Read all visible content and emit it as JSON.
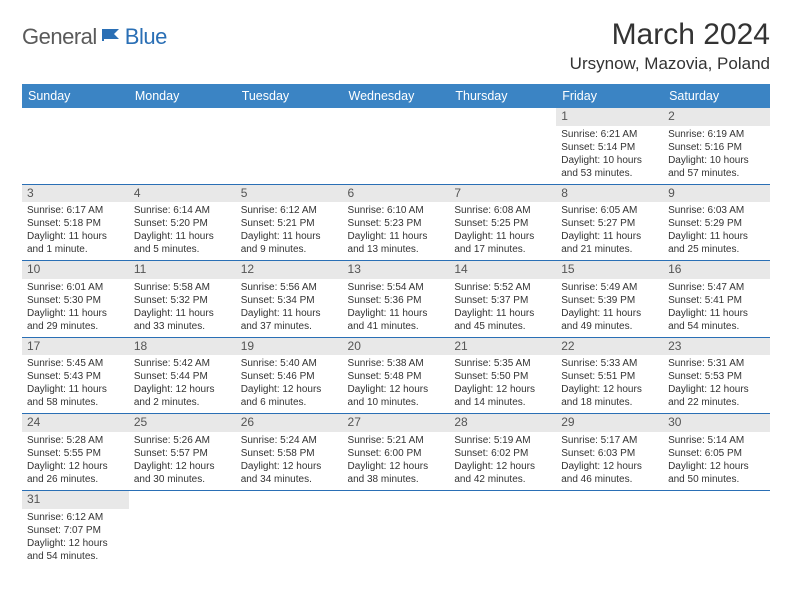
{
  "logo": {
    "text1": "General",
    "text2": "Blue"
  },
  "title": "March 2024",
  "location": "Ursynow, Mazovia, Poland",
  "colors": {
    "header_bg": "#3b84c4",
    "header_text": "#ffffff",
    "rule": "#2a6fb5",
    "daynum_bg": "#e8e8e8",
    "logo_gray": "#5a5a5a",
    "logo_blue": "#2a6fb5"
  },
  "weekdays": [
    "Sunday",
    "Monday",
    "Tuesday",
    "Wednesday",
    "Thursday",
    "Friday",
    "Saturday"
  ],
  "weeks": [
    [
      null,
      null,
      null,
      null,
      null,
      {
        "n": "1",
        "sr": "Sunrise: 6:21 AM",
        "ss": "Sunset: 5:14 PM",
        "dl": "Daylight: 10 hours and 53 minutes."
      },
      {
        "n": "2",
        "sr": "Sunrise: 6:19 AM",
        "ss": "Sunset: 5:16 PM",
        "dl": "Daylight: 10 hours and 57 minutes."
      }
    ],
    [
      {
        "n": "3",
        "sr": "Sunrise: 6:17 AM",
        "ss": "Sunset: 5:18 PM",
        "dl": "Daylight: 11 hours and 1 minute."
      },
      {
        "n": "4",
        "sr": "Sunrise: 6:14 AM",
        "ss": "Sunset: 5:20 PM",
        "dl": "Daylight: 11 hours and 5 minutes."
      },
      {
        "n": "5",
        "sr": "Sunrise: 6:12 AM",
        "ss": "Sunset: 5:21 PM",
        "dl": "Daylight: 11 hours and 9 minutes."
      },
      {
        "n": "6",
        "sr": "Sunrise: 6:10 AM",
        "ss": "Sunset: 5:23 PM",
        "dl": "Daylight: 11 hours and 13 minutes."
      },
      {
        "n": "7",
        "sr": "Sunrise: 6:08 AM",
        "ss": "Sunset: 5:25 PM",
        "dl": "Daylight: 11 hours and 17 minutes."
      },
      {
        "n": "8",
        "sr": "Sunrise: 6:05 AM",
        "ss": "Sunset: 5:27 PM",
        "dl": "Daylight: 11 hours and 21 minutes."
      },
      {
        "n": "9",
        "sr": "Sunrise: 6:03 AM",
        "ss": "Sunset: 5:29 PM",
        "dl": "Daylight: 11 hours and 25 minutes."
      }
    ],
    [
      {
        "n": "10",
        "sr": "Sunrise: 6:01 AM",
        "ss": "Sunset: 5:30 PM",
        "dl": "Daylight: 11 hours and 29 minutes."
      },
      {
        "n": "11",
        "sr": "Sunrise: 5:58 AM",
        "ss": "Sunset: 5:32 PM",
        "dl": "Daylight: 11 hours and 33 minutes."
      },
      {
        "n": "12",
        "sr": "Sunrise: 5:56 AM",
        "ss": "Sunset: 5:34 PM",
        "dl": "Daylight: 11 hours and 37 minutes."
      },
      {
        "n": "13",
        "sr": "Sunrise: 5:54 AM",
        "ss": "Sunset: 5:36 PM",
        "dl": "Daylight: 11 hours and 41 minutes."
      },
      {
        "n": "14",
        "sr": "Sunrise: 5:52 AM",
        "ss": "Sunset: 5:37 PM",
        "dl": "Daylight: 11 hours and 45 minutes."
      },
      {
        "n": "15",
        "sr": "Sunrise: 5:49 AM",
        "ss": "Sunset: 5:39 PM",
        "dl": "Daylight: 11 hours and 49 minutes."
      },
      {
        "n": "16",
        "sr": "Sunrise: 5:47 AM",
        "ss": "Sunset: 5:41 PM",
        "dl": "Daylight: 11 hours and 54 minutes."
      }
    ],
    [
      {
        "n": "17",
        "sr": "Sunrise: 5:45 AM",
        "ss": "Sunset: 5:43 PM",
        "dl": "Daylight: 11 hours and 58 minutes."
      },
      {
        "n": "18",
        "sr": "Sunrise: 5:42 AM",
        "ss": "Sunset: 5:44 PM",
        "dl": "Daylight: 12 hours and 2 minutes."
      },
      {
        "n": "19",
        "sr": "Sunrise: 5:40 AM",
        "ss": "Sunset: 5:46 PM",
        "dl": "Daylight: 12 hours and 6 minutes."
      },
      {
        "n": "20",
        "sr": "Sunrise: 5:38 AM",
        "ss": "Sunset: 5:48 PM",
        "dl": "Daylight: 12 hours and 10 minutes."
      },
      {
        "n": "21",
        "sr": "Sunrise: 5:35 AM",
        "ss": "Sunset: 5:50 PM",
        "dl": "Daylight: 12 hours and 14 minutes."
      },
      {
        "n": "22",
        "sr": "Sunrise: 5:33 AM",
        "ss": "Sunset: 5:51 PM",
        "dl": "Daylight: 12 hours and 18 minutes."
      },
      {
        "n": "23",
        "sr": "Sunrise: 5:31 AM",
        "ss": "Sunset: 5:53 PM",
        "dl": "Daylight: 12 hours and 22 minutes."
      }
    ],
    [
      {
        "n": "24",
        "sr": "Sunrise: 5:28 AM",
        "ss": "Sunset: 5:55 PM",
        "dl": "Daylight: 12 hours and 26 minutes."
      },
      {
        "n": "25",
        "sr": "Sunrise: 5:26 AM",
        "ss": "Sunset: 5:57 PM",
        "dl": "Daylight: 12 hours and 30 minutes."
      },
      {
        "n": "26",
        "sr": "Sunrise: 5:24 AM",
        "ss": "Sunset: 5:58 PM",
        "dl": "Daylight: 12 hours and 34 minutes."
      },
      {
        "n": "27",
        "sr": "Sunrise: 5:21 AM",
        "ss": "Sunset: 6:00 PM",
        "dl": "Daylight: 12 hours and 38 minutes."
      },
      {
        "n": "28",
        "sr": "Sunrise: 5:19 AM",
        "ss": "Sunset: 6:02 PM",
        "dl": "Daylight: 12 hours and 42 minutes."
      },
      {
        "n": "29",
        "sr": "Sunrise: 5:17 AM",
        "ss": "Sunset: 6:03 PM",
        "dl": "Daylight: 12 hours and 46 minutes."
      },
      {
        "n": "30",
        "sr": "Sunrise: 5:14 AM",
        "ss": "Sunset: 6:05 PM",
        "dl": "Daylight: 12 hours and 50 minutes."
      }
    ],
    [
      {
        "n": "31",
        "sr": "Sunrise: 6:12 AM",
        "ss": "Sunset: 7:07 PM",
        "dl": "Daylight: 12 hours and 54 minutes."
      },
      null,
      null,
      null,
      null,
      null,
      null
    ]
  ]
}
